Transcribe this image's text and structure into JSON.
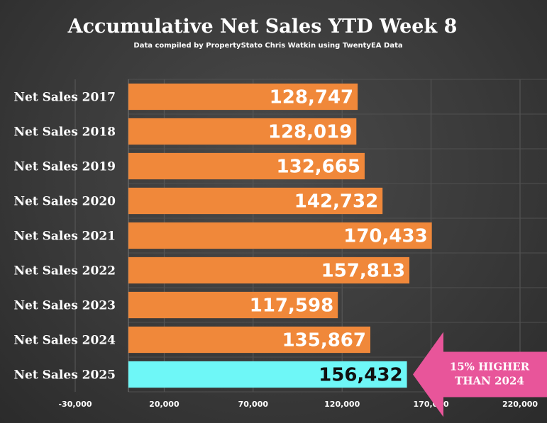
{
  "chart_data": {
    "type": "bar",
    "orientation": "horizontal",
    "title": "Accumulative Net Sales YTD Week 8",
    "subtitle": "Data compiled by PropertyStato Chris Watkin using TwentyEA Data",
    "categories": [
      "Net Sales 2017",
      "Net Sales 2018",
      "Net Sales 2019",
      "Net Sales 2020",
      "Net Sales 2021",
      "Net Sales 2022",
      "Net Sales 2023",
      "Net Sales 2024",
      "Net Sales 2025"
    ],
    "values": [
      128747,
      128019,
      132665,
      142732,
      170433,
      157813,
      117598,
      135867,
      156432
    ],
    "data_labels": [
      "128,747",
      "128,019",
      "132,665",
      "142,732",
      "170,433",
      "157,813",
      "117,598",
      "135,867",
      "156,432"
    ],
    "x_ticks": [
      -30000,
      20000,
      70000,
      120000,
      170000,
      220000
    ],
    "x_tick_labels": [
      "-30,000",
      "20,000",
      "70,000",
      "120,000",
      "170,000",
      "220,000"
    ],
    "xlim": [
      -30000,
      220000
    ],
    "grid": true,
    "bar_color": "#f0883a",
    "highlight_color": "#6ef7f7",
    "highlight_index": 8,
    "annotation": {
      "text_lines": [
        "15% HIGHER",
        "THAN 2024"
      ],
      "color": "#e8559a"
    }
  }
}
